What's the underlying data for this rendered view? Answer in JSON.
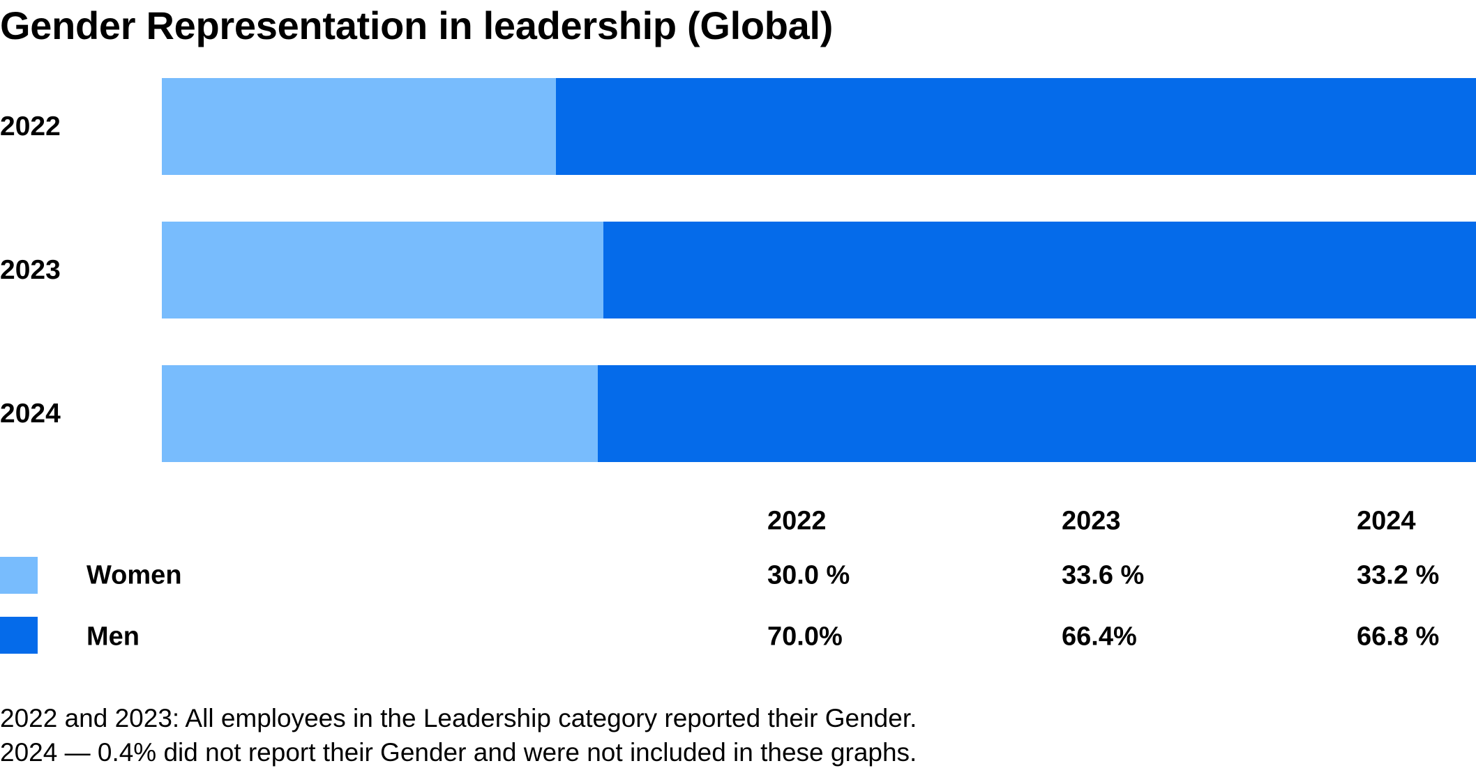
{
  "chart_data": {
    "type": "bar",
    "orientation": "horizontal",
    "stacked": true,
    "normalized_percent": true,
    "title": "Gender Representation in leadership (Global)",
    "categories": [
      "2022",
      "2023",
      "2024"
    ],
    "series": [
      {
        "name": "Women",
        "values": [
          30.0,
          33.6,
          33.2
        ],
        "labels": [
          "30.0 %",
          "33.6 %",
          "33.2 %"
        ],
        "color": "#78BCFD"
      },
      {
        "name": "Men",
        "values": [
          70.0,
          66.4,
          66.8
        ],
        "labels": [
          "70.0%",
          "66.4%",
          "66.8 %"
        ],
        "color": "#056BEA"
      }
    ],
    "xlim": [
      0,
      100
    ],
    "grid": false,
    "legend": "bottom-left table"
  },
  "table": {
    "headers": [
      "2022",
      "2023",
      "2024"
    ]
  },
  "footnotes": [
    "2022 and 2023: All employees in the Leadership category reported their Gender.",
    "2024 — 0.4% did not report their Gender and were not included in these graphs."
  ]
}
